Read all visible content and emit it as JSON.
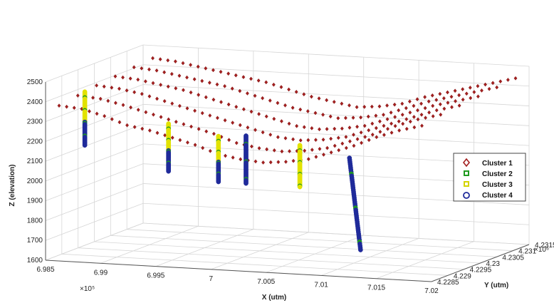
{
  "chart_data": {
    "type": "scatter3d",
    "zlabel": "Z (elevation)",
    "xlabel": "X (utm)",
    "ylabel": "Y (utm)",
    "x_ticks": [
      "6.985",
      "6.99",
      "6.995",
      "7",
      "7.005",
      "7.01",
      "7.015",
      "7.02"
    ],
    "x_exponent": "×10⁵",
    "y_ticks": [
      "4.2285",
      "4.229",
      "4.2295",
      "4.23",
      "4.2305",
      "4.231",
      "4.2315"
    ],
    "y_exponent": "×10⁶",
    "z_ticks": [
      "1600",
      "1700",
      "1800",
      "1900",
      "2000",
      "2100",
      "2200",
      "2300",
      "2400",
      "2500"
    ],
    "xlim": [
      698500,
      702000
    ],
    "ylim": [
      4228500,
      4231500
    ],
    "zlim": [
      1600,
      2500
    ],
    "grid": true,
    "legend_position": "right",
    "series": [
      {
        "name": "Cluster 1",
        "marker": "diamond-open",
        "color": "#a31f1f"
      },
      {
        "name": "Cluster 2",
        "marker": "square-open",
        "color": "#1f9a1f"
      },
      {
        "name": "Cluster 3",
        "marker": "square-open",
        "color": "#e6e600"
      },
      {
        "name": "Cluster 4",
        "marker": "circle-open",
        "color": "#1f2a9a"
      }
    ],
    "surface_rows": [
      {
        "z": [
          2380,
          2370,
          2340,
          2300,
          2280,
          2250,
          2220,
          2180,
          2160,
          2150,
          2160,
          2180,
          2220,
          2260,
          2310,
          2350,
          2380
        ]
      },
      {
        "z": [
          2395,
          2385,
          2360,
          2330,
          2300,
          2270,
          2240,
          2200,
          2180,
          2170,
          2180,
          2200,
          2240,
          2280,
          2330,
          2370,
          2400
        ]
      },
      {
        "z": [
          2410,
          2400,
          2380,
          2350,
          2320,
          2290,
          2260,
          2230,
          2200,
          2190,
          2200,
          2220,
          2260,
          2300,
          2340,
          2380,
          2410
        ]
      },
      {
        "z": [
          2420,
          2410,
          2390,
          2370,
          2340,
          2310,
          2280,
          2250,
          2220,
          2210,
          2220,
          2240,
          2280,
          2320,
          2360,
          2390,
          2420
        ]
      },
      {
        "z": [
          2430,
          2420,
          2400,
          2380,
          2360,
          2330,
          2300,
          2270,
          2250,
          2230,
          2240,
          2260,
          2300,
          2340,
          2370,
          2400,
          2430
        ]
      },
      {
        "z": [
          2440,
          2430,
          2410,
          2390,
          2370,
          2350,
          2320,
          2290,
          2270,
          2250,
          2260,
          2280,
          2320,
          2350,
          2380,
          2410,
          2440
        ]
      }
    ],
    "wells": [
      {
        "x": 698850,
        "y": 4228520,
        "ztop": 2460,
        "zbot": 2190,
        "pattern": "yellow-blue"
      },
      {
        "x": 699600,
        "y": 4228550,
        "ztop": 2320,
        "zbot": 2080,
        "pattern": "yellow-blue"
      },
      {
        "x": 700050,
        "y": 4228560,
        "ztop": 2270,
        "zbot": 2040,
        "pattern": "yellow-blue"
      },
      {
        "x": 700300,
        "y": 4228560,
        "ztop": 2280,
        "zbot": 2040,
        "pattern": "blue"
      },
      {
        "x": 700800,
        "y": 4228520,
        "ztop": 2250,
        "zbot": 2040,
        "pattern": "yellow"
      },
      {
        "x": 701250,
        "y": 4228520,
        "ztop": 2200,
        "zbot": 1740,
        "pattern": "blue-deviated"
      }
    ]
  }
}
